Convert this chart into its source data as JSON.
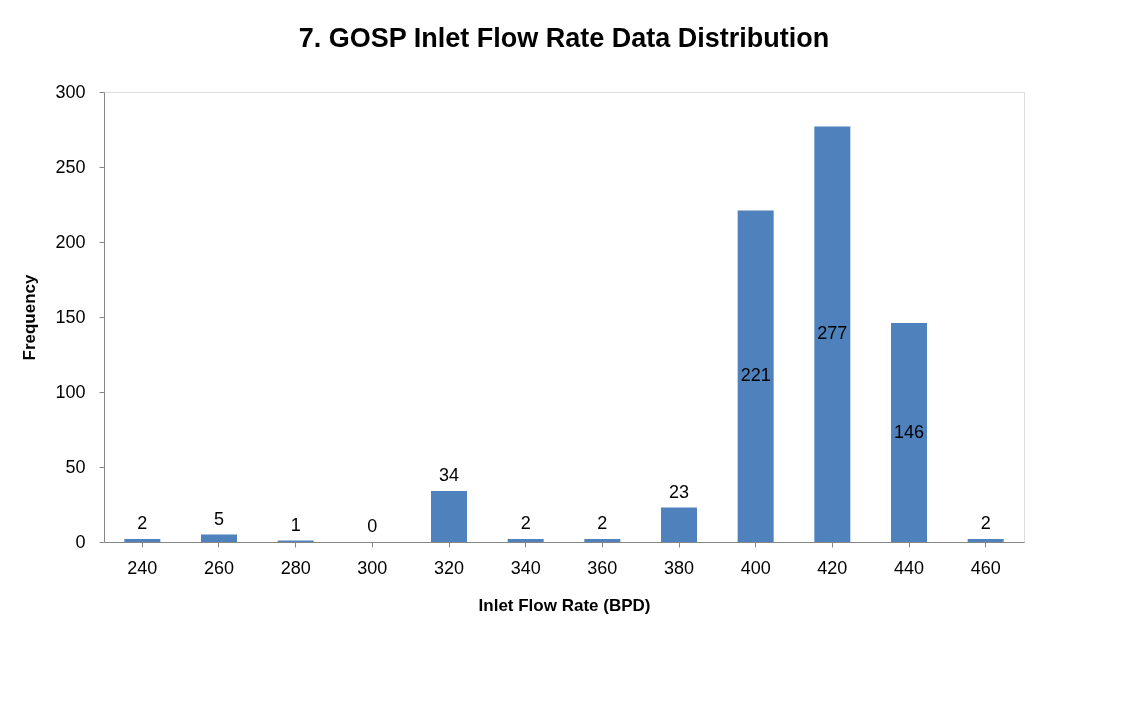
{
  "chart_data": {
    "type": "bar",
    "title": "7. GOSP Inlet Flow Rate Data Distribution",
    "xlabel": "Inlet Flow Rate (BPD)",
    "ylabel": "Frequency",
    "categories": [
      "240",
      "260",
      "280",
      "300",
      "320",
      "340",
      "360",
      "380",
      "400",
      "420",
      "440",
      "460"
    ],
    "values": [
      2,
      5,
      1,
      0,
      34,
      2,
      2,
      23,
      221,
      277,
      146,
      2
    ],
    "color": "#4f81bd",
    "ylim": [
      0,
      300
    ],
    "yticks": [
      0,
      50,
      100,
      150,
      200,
      250,
      300
    ],
    "grid": false,
    "data_labels": true
  }
}
